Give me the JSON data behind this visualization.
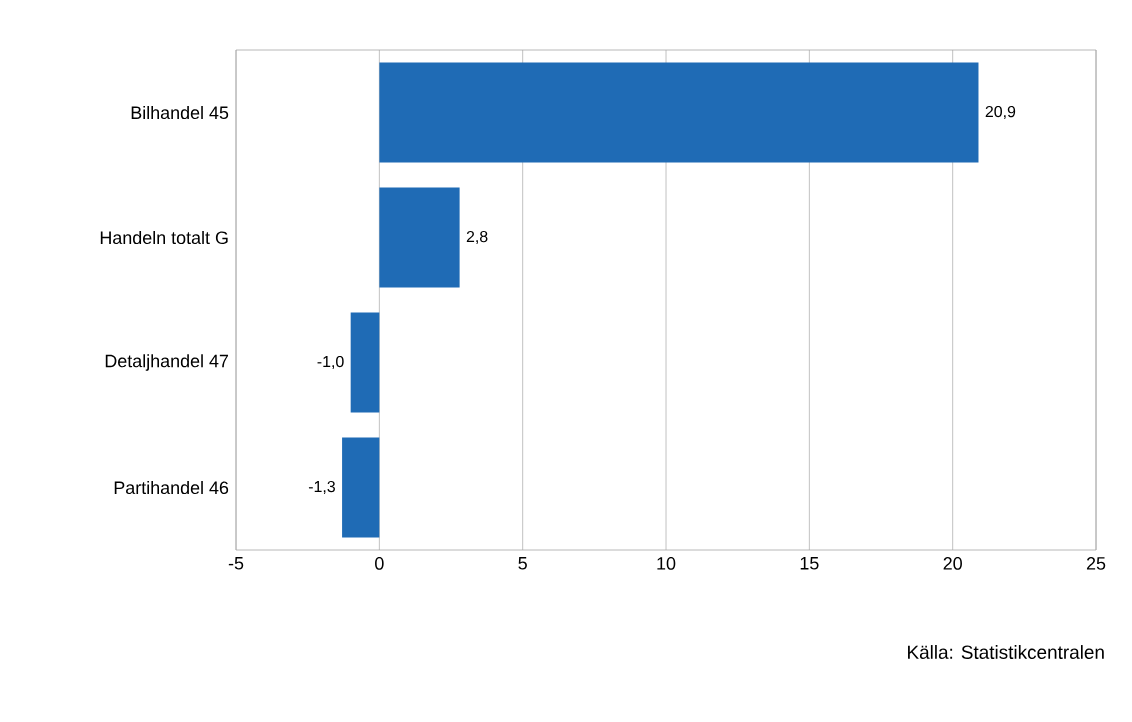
{
  "chart_data": {
    "type": "bar",
    "orientation": "horizontal",
    "categories": [
      "Bilhandel 45",
      "Handeln totalt G",
      "Detaljhandel 47",
      "Partihandel 46"
    ],
    "values": [
      20.9,
      2.8,
      -1.0,
      -1.3
    ],
    "value_labels": [
      "20,9",
      "2,8",
      "-1,0",
      "-1,3"
    ],
    "color": "#1f6bb5",
    "xlim": [
      -5,
      25
    ],
    "xticks": [
      -5,
      0,
      5,
      10,
      15,
      20,
      25
    ],
    "grid": "x",
    "annotations": [
      "Källa: Statistikcentralen"
    ]
  }
}
